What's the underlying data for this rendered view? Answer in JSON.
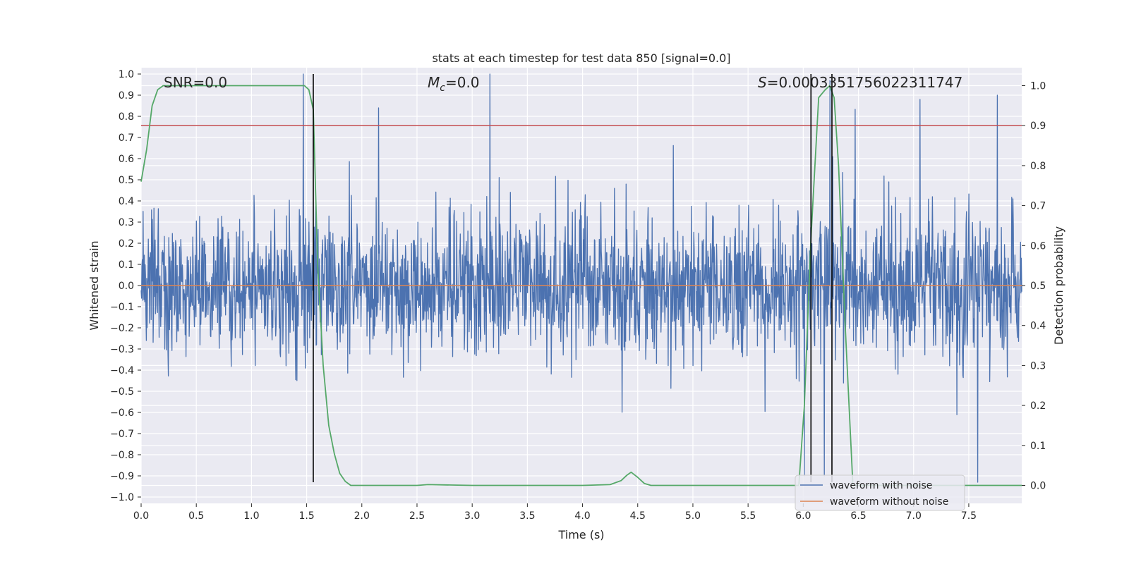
{
  "chart_data": {
    "type": "line",
    "title": "stats at each timestep for test data 850 [signal=0.0]",
    "xlabel": "Time (s)",
    "ylabel": "Whitened strain",
    "y2label": "Detection probability",
    "xlim": [
      0.0,
      7.98
    ],
    "ylim": [
      -1.03,
      1.03
    ],
    "y2lim": [
      -0.045,
      1.045
    ],
    "x_ticks": [
      0.0,
      0.5,
      1.0,
      1.5,
      2.0,
      2.5,
      3.0,
      3.5,
      4.0,
      4.5,
      5.0,
      5.5,
      6.0,
      6.5,
      7.0,
      7.5
    ],
    "x_tick_labels": [
      "0.0",
      "0.5",
      "1.0",
      "1.5",
      "2.0",
      "2.5",
      "3.0",
      "3.5",
      "4.0",
      "4.5",
      "5.0",
      "5.5",
      "6.0",
      "6.5",
      "7.0",
      "7.5"
    ],
    "y_ticks": [
      -1.0,
      -0.9,
      -0.8,
      -0.7,
      -0.6,
      -0.5,
      -0.4,
      -0.3,
      -0.2,
      -0.1,
      0.0,
      0.1,
      0.2,
      0.3,
      0.4,
      0.5,
      0.6,
      0.7,
      0.8,
      0.9,
      1.0
    ],
    "y_tick_labels": [
      "−1.0",
      "−0.9",
      "−0.8",
      "−0.7",
      "−0.6",
      "−0.5",
      "−0.4",
      "−0.3",
      "−0.2",
      "−0.1",
      "0.0",
      "0.1",
      "0.2",
      "0.3",
      "0.4",
      "0.5",
      "0.6",
      "0.7",
      "0.8",
      "0.9",
      "1.0"
    ],
    "y2_ticks": [
      0.0,
      0.1,
      0.2,
      0.3,
      0.4,
      0.5,
      0.6,
      0.7,
      0.8,
      0.9,
      1.0
    ],
    "y2_tick_labels": [
      "0.0",
      "0.1",
      "0.2",
      "0.3",
      "0.4",
      "0.5",
      "0.6",
      "0.7",
      "0.8",
      "0.9",
      "1.0"
    ],
    "annotations": {
      "snr": "SNR=0.0",
      "mc_symbol": "M",
      "mc_sub": "c",
      "mc_value": "=0.0",
      "s_symbol": "S",
      "s_value": "=0.0003351756022311747"
    },
    "legend": {
      "position": "lower right",
      "entries": [
        "waveform with noise",
        "waveform without noise"
      ]
    },
    "threshold": {
      "value": 0.9,
      "axis": "right",
      "color": "#c44e52"
    },
    "vertical_lines": [
      1.56,
      6.07,
      6.26
    ],
    "series": [
      {
        "name": "waveform with noise",
        "color": "#4c72b0",
        "description": "whitened strain noise, dense oscillation between roughly -0.5 and 0.5 with spikes",
        "peaks": [
          {
            "x": 1.47,
            "y": 1.0
          },
          {
            "x": 3.16,
            "y": 1.0
          },
          {
            "x": 6.24,
            "y": 0.97
          },
          {
            "x": 7.06,
            "y": 0.88
          },
          {
            "x": 7.76,
            "y": 0.9
          },
          {
            "x": 7.58,
            "y": -0.93
          },
          {
            "x": 6.01,
            "y": -0.9
          },
          {
            "x": 6.19,
            "y": -0.9
          }
        ]
      },
      {
        "name": "waveform without noise",
        "color": "#dd8452",
        "x": [
          0.0,
          7.98
        ],
        "y": [
          0.0,
          0.0
        ]
      },
      {
        "name": "detection probability",
        "color": "#55a868",
        "axis": "right",
        "x": [
          0.0,
          0.05,
          0.1,
          0.15,
          0.2,
          0.3,
          0.5,
          1.0,
          1.4,
          1.48,
          1.52,
          1.56,
          1.6,
          1.65,
          1.7,
          1.75,
          1.8,
          1.85,
          1.9,
          2.0,
          2.5,
          2.6,
          3.0,
          4.0,
          4.25,
          4.35,
          4.4,
          4.44,
          4.5,
          4.56,
          4.62,
          4.8,
          5.5,
          5.96,
          6.01,
          6.07,
          6.14,
          6.2,
          6.24,
          6.28,
          6.32,
          6.38,
          6.45,
          7.0,
          7.5,
          7.98
        ],
        "y": [
          0.76,
          0.84,
          0.95,
          0.99,
          1.0,
          1.0,
          1.0,
          1.0,
          1.0,
          1.0,
          0.99,
          0.94,
          0.55,
          0.3,
          0.15,
          0.08,
          0.03,
          0.01,
          0.0,
          0.0,
          0.0,
          0.002,
          0.0,
          0.0,
          0.002,
          0.012,
          0.025,
          0.033,
          0.02,
          0.005,
          0.0,
          0.0,
          0.0,
          0.0,
          0.2,
          0.62,
          0.97,
          0.99,
          1.0,
          0.97,
          0.8,
          0.4,
          0.0,
          0.0,
          0.0,
          0.0
        ]
      }
    ]
  }
}
